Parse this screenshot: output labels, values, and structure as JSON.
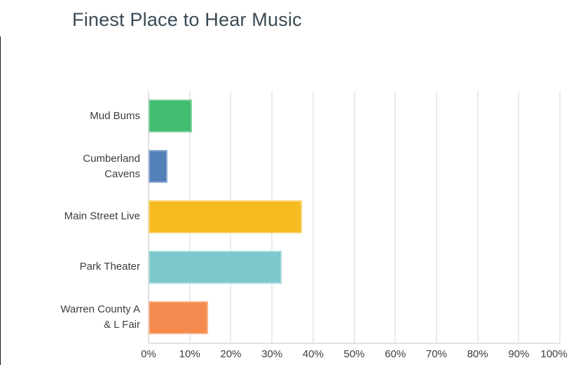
{
  "page": {
    "title": "Finest Place to Hear Music"
  },
  "colors": {
    "title_text": "#3a4a55",
    "label_text": "#3d3d3d",
    "gridline": "#eaeaea",
    "zero_gridline": "#e0e0e0",
    "axis_line": "#e3e3e3",
    "left_edge_line": "#1c1c1c"
  },
  "chart_data": {
    "type": "bar",
    "orientation": "horizontal",
    "title": "Finest Place to Hear Music",
    "categories": [
      "Mud Bums",
      "Cumberland Cavens",
      "Main Street Live",
      "Park Theater",
      "Warren County A & L Fair"
    ],
    "values": [
      10.5,
      4.6,
      37.3,
      32.4,
      14.5
    ],
    "unit": "%",
    "bar_colors": [
      "#42bc70",
      "#5280b8",
      "#f5bb20",
      "#7cc8cd",
      "#f58a4e"
    ],
    "x_ticks": [
      "0%",
      "10%",
      "20%",
      "30%",
      "40%",
      "50%",
      "60%",
      "70%",
      "80%",
      "90%",
      "100%"
    ],
    "x_tick_values": [
      0,
      10,
      20,
      30,
      40,
      50,
      60,
      70,
      80,
      90,
      100
    ],
    "xlabel": "",
    "ylabel": "",
    "xlim": [
      0,
      100
    ],
    "grid": "vertical",
    "legend": "none"
  }
}
